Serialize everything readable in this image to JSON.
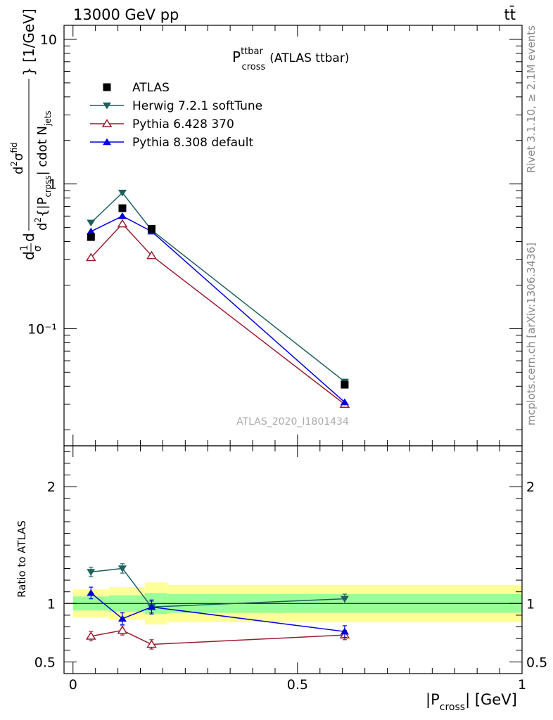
{
  "header": {
    "left": "13000 GeV pp",
    "right": "tt̄"
  },
  "title": {
    "main": "P",
    "sup": "ttbar",
    "sub": "cross",
    "suffix": "(ATLAS ttbar)"
  },
  "side_labels": {
    "rivet": "Rivet 3.1.10, ≥ 2.1M events",
    "mcplots": "mcplots.cern.ch [arXiv:1306.3436]"
  },
  "watermark": "ATLAS_2020_I1801434",
  "main_ylabel": {
    "prefix": "d",
    "frac1_num": "1",
    "frac1_den": "σ",
    "d": "d",
    "frac2_num": "d",
    "frac2_num_sup": "2",
    "frac2_num_sigma": "σ",
    "frac2_num_sigma_sup": "fid",
    "frac2_den_prefix": "d",
    "frac2_den_sup": "2",
    "frac2_den_body": "{|P",
    "frac2_den_sub": "cross",
    "frac2_den_body2": "| cdot N",
    "frac2_den_sub2": "jets",
    "suffix": "} [1/GeV]"
  },
  "ratio_ylabel": "Ratio to ATLAS",
  "xlabel": {
    "pre": "|P",
    "sub": "cross",
    "post": "| [GeV]"
  },
  "chart_data": {
    "type": "line",
    "x_axis": {
      "range": [
        -0.02,
        1.0
      ],
      "ticks": [
        0,
        0.5,
        1
      ],
      "tick_labels": [
        "0",
        "0.5",
        "1"
      ]
    },
    "main_y_axis": {
      "scale": "log",
      "range": [
        0.0155,
        12.5
      ],
      "major_ticks": [
        0.1,
        1,
        10
      ],
      "tick_labels": [
        "10⁻¹",
        "1",
        "10"
      ]
    },
    "ratio_y_axis": {
      "range": [
        0.4,
        2.35
      ],
      "ticks": [
        0.5,
        1,
        2
      ],
      "tick_labels": [
        "0.5",
        "1",
        "2"
      ]
    },
    "legend": {
      "position": "top-left",
      "entries": [
        "ATLAS",
        "Herwig 7.2.1 softTune",
        "Pythia 6.428 370",
        "Pythia 8.308 default"
      ]
    },
    "bins": [
      {
        "lo": 0.0,
        "hi": 0.08
      },
      {
        "lo": 0.08,
        "hi": 0.16
      },
      {
        "lo": 0.16,
        "hi": 0.21
      },
      {
        "lo": 0.21,
        "hi": 1.0
      }
    ],
    "data": {
      "name": "ATLAS",
      "color": "#000000",
      "marker": "square",
      "x": [
        0.04,
        0.11,
        0.175,
        0.605
      ],
      "y": [
        0.43,
        0.68,
        0.49,
        0.041
      ],
      "band_inner": [
        0.06,
        0.07,
        0.09,
        0.08
      ],
      "band_outer": [
        0.12,
        0.14,
        0.18,
        0.16
      ]
    },
    "series": [
      {
        "name": "Herwig 7.2.1 softTune",
        "color": "#1f5f5f",
        "marker": "triangle-down",
        "x": [
          0.04,
          0.11,
          0.175,
          0.605
        ],
        "y": [
          0.54,
          0.87,
          0.48,
          0.043
        ],
        "yerr": [
          0.015,
          0.02,
          0.02,
          0.0012
        ],
        "ratio": [
          1.27,
          1.3,
          0.97,
          1.04
        ],
        "ratio_err": [
          0.04,
          0.04,
          0.05,
          0.04
        ]
      },
      {
        "name": "Pythia 6.428 370",
        "color": "#9b1c31",
        "marker": "triangle-open",
        "x": [
          0.04,
          0.11,
          0.175,
          0.605
        ],
        "y": [
          0.31,
          0.53,
          0.32,
          0.03
        ],
        "yerr": [
          0.012,
          0.015,
          0.012,
          0.0012
        ],
        "ratio": [
          0.72,
          0.77,
          0.65,
          0.73
        ],
        "ratio_err": [
          0.04,
          0.04,
          0.04,
          0.04
        ]
      },
      {
        "name": "Pythia 8.308 default",
        "color": "#0000dd",
        "marker": "triangle-up",
        "x": [
          0.04,
          0.11,
          0.175,
          0.605
        ],
        "y": [
          0.47,
          0.6,
          0.47,
          0.031
        ],
        "yerr": [
          0.015,
          0.02,
          0.02,
          0.0015
        ],
        "ratio": [
          1.09,
          0.87,
          0.97,
          0.76
        ],
        "ratio_err": [
          0.05,
          0.05,
          0.06,
          0.05
        ]
      }
    ]
  }
}
